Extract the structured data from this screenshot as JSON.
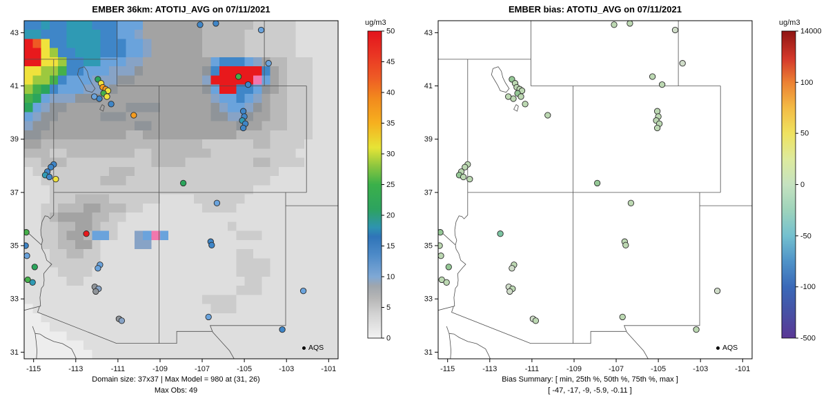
{
  "chart_data": {
    "type": [
      "heatmap",
      "scatter"
    ],
    "shared_axes": {
      "xlim": [
        -115.45,
        -100.55
      ],
      "ylim": [
        30.75,
        43.45
      ],
      "x_ticks": [
        -115,
        -113,
        -111,
        -109,
        -107,
        -105,
        -103,
        -101
      ],
      "y_ticks": [
        31,
        33,
        35,
        37,
        39,
        41,
        43
      ],
      "grid": false
    },
    "palette": {
      "0": "#ededed",
      "1": "#dedede",
      "2": "#cccccc",
      "3": "#b9b9b9",
      "4": "#a3a3a3",
      "5": "#8f9499",
      "6": "#87a3c6",
      "7": "#6aa3dc",
      "8": "#3f86c8",
      "9": "#2f9ab4",
      "A": "#2ba55c",
      "B": "#45b04a",
      "C": "#9cc93e",
      "D": "#f0e23c",
      "E": "#f59c1f",
      "F": "#ee5a24",
      "G": "#e8191c",
      "P": "#f277ad"
    },
    "value_levels_ugm3": {
      "0": 0,
      "1": 1.5,
      "2": 3,
      "3": 4.5,
      "4": 6,
      "5": 7.5,
      "6": 9,
      "7": 11,
      "8": 13,
      "9": 16,
      "A": 21,
      "B": 24,
      "C": 27,
      "D": 31,
      "E": 36,
      "F": 44,
      "G": 50,
      "P": ">50"
    },
    "bias_palette": {
      "q": "#bcd8b2",
      "r": "#94c795",
      "s": "#cfdcc8",
      "t": "#7cc4a2"
    },
    "bias_levels_ugm3": {
      "q": -10,
      "r": -25,
      "s": -3,
      "t": -45
    },
    "obs_points_format": [
      "lon",
      "lat",
      "model_level",
      "bias_level"
    ],
    "obs_points": [
      [
        -111.95,
        41.25,
        "A",
        "r"
      ],
      [
        -111.8,
        41.1,
        "D",
        "q"
      ],
      [
        -111.72,
        40.95,
        "E",
        "q"
      ],
      [
        -111.58,
        40.88,
        "E",
        "q"
      ],
      [
        -111.47,
        40.82,
        "D",
        "q"
      ],
      [
        -111.68,
        40.72,
        "B",
        "r"
      ],
      [
        -111.52,
        40.6,
        "D",
        "q"
      ],
      [
        -111.88,
        40.52,
        "8",
        "q"
      ],
      [
        -112.12,
        40.6,
        "7",
        "q"
      ],
      [
        -111.32,
        40.32,
        "8",
        "q"
      ],
      [
        -110.25,
        39.9,
        "E",
        "q"
      ],
      [
        -107.1,
        43.3,
        "8",
        "q"
      ],
      [
        -106.35,
        43.35,
        "8",
        "q"
      ],
      [
        -104.2,
        43.1,
        "7",
        "s"
      ],
      [
        -105.28,
        41.35,
        "B",
        "q"
      ],
      [
        -104.82,
        41.05,
        "8",
        "q"
      ],
      [
        -103.85,
        41.85,
        "7",
        "s"
      ],
      [
        -105.05,
        40.05,
        "8",
        "q"
      ],
      [
        -105.0,
        39.85,
        "8",
        "q"
      ],
      [
        -105.1,
        39.7,
        "9",
        "q"
      ],
      [
        -104.95,
        39.58,
        "8",
        "q"
      ],
      [
        -105.05,
        39.42,
        "8",
        "q"
      ],
      [
        -107.9,
        37.35,
        "A",
        "r"
      ],
      [
        -106.3,
        36.6,
        "7",
        "q"
      ],
      [
        -114.05,
        38.05,
        "8",
        "q"
      ],
      [
        -114.18,
        37.95,
        "8",
        "q"
      ],
      [
        -114.35,
        37.78,
        "8",
        "q"
      ],
      [
        -114.45,
        37.65,
        "9",
        "r"
      ],
      [
        -114.25,
        37.58,
        "8",
        "q"
      ],
      [
        -113.95,
        37.5,
        "D",
        "q"
      ],
      [
        -112.5,
        35.45,
        "G",
        "t"
      ],
      [
        -115.35,
        35.5,
        "B",
        "r"
      ],
      [
        -115.38,
        35.0,
        "8",
        "q"
      ],
      [
        -115.32,
        34.62,
        "7",
        "q"
      ],
      [
        -114.95,
        34.2,
        "A",
        "r"
      ],
      [
        -115.28,
        33.72,
        "B",
        "q"
      ],
      [
        -115.05,
        33.62,
        "9",
        "q"
      ],
      [
        -111.85,
        34.28,
        "7",
        "q"
      ],
      [
        -111.95,
        34.15,
        "7",
        "s"
      ],
      [
        -112.1,
        33.45,
        "5",
        "s"
      ],
      [
        -111.92,
        33.38,
        "6",
        "q"
      ],
      [
        -112.05,
        33.28,
        "5",
        "s"
      ],
      [
        -110.95,
        32.25,
        "5",
        "s"
      ],
      [
        -110.82,
        32.18,
        "6",
        "q"
      ],
      [
        -106.6,
        35.15,
        "8",
        "q"
      ],
      [
        -106.55,
        35.02,
        "8",
        "q"
      ],
      [
        -106.7,
        32.32,
        "7",
        "q"
      ],
      [
        -103.2,
        31.85,
        "8",
        "q"
      ],
      [
        -102.2,
        33.3,
        "7",
        "s"
      ]
    ],
    "map_lines": [
      [
        [
          -115.6,
          42
        ],
        [
          -111.05,
          42
        ]
      ],
      [
        [
          -111.05,
          43.6
        ],
        [
          -111.05,
          41
        ]
      ],
      [
        [
          -111.05,
          41
        ],
        [
          -102.05,
          41
        ]
      ],
      [
        [
          -104.05,
          43.6
        ],
        [
          -104.05,
          41
        ]
      ],
      [
        [
          -114.05,
          42
        ],
        [
          -114.05,
          37
        ]
      ],
      [
        [
          -114.05,
          37
        ],
        [
          -102.05,
          37
        ]
      ],
      [
        [
          -109.05,
          41
        ],
        [
          -109.05,
          37
        ]
      ],
      [
        [
          -109.05,
          37
        ],
        [
          -109.05,
          31.33
        ]
      ],
      [
        [
          -102.05,
          41
        ],
        [
          -102.05,
          37
        ]
      ],
      [
        [
          -103.04,
          37
        ],
        [
          -103.04,
          32
        ],
        [
          -106.62,
          32
        ],
        [
          -106.5,
          31.75
        ],
        [
          -106.1,
          31.4
        ],
        [
          -105.7,
          31.05
        ],
        [
          -105.45,
          30.7
        ]
      ],
      [
        [
          -103.04,
          36.5
        ],
        [
          -100.4,
          36.5
        ]
      ],
      [
        [
          -115.6,
          32.54
        ],
        [
          -114.72,
          32.72
        ],
        [
          -114.81,
          32.5
        ],
        [
          -111.07,
          31.33
        ],
        [
          -108.21,
          31.33
        ],
        [
          -108.21,
          31.78
        ],
        [
          -106.53,
          31.78
        ]
      ],
      [
        [
          -115.6,
          35.72
        ],
        [
          -114.63,
          35.03
        ],
        [
          -114.6,
          34.87
        ],
        [
          -114.47,
          34.7
        ],
        [
          -114.38,
          34.45
        ],
        [
          -114.14,
          34.3
        ],
        [
          -114.29,
          34.17
        ],
        [
          -114.52,
          33.95
        ],
        [
          -114.5,
          33.7
        ],
        [
          -114.53,
          33.5
        ],
        [
          -114.63,
          33.4
        ],
        [
          -114.7,
          33.05
        ],
        [
          -114.67,
          32.73
        ],
        [
          -114.72,
          32.72
        ]
      ],
      [
        [
          -114.05,
          37
        ],
        [
          -114.05,
          36.15
        ],
        [
          -114.22,
          36.01
        ],
        [
          -114.33,
          36.1
        ],
        [
          -114.46,
          36.12
        ],
        [
          -114.6,
          35.9
        ],
        [
          -114.66,
          35.6
        ],
        [
          -114.65,
          35.4
        ],
        [
          -114.57,
          35.2
        ],
        [
          -114.63,
          35.03
        ]
      ],
      [
        [
          -115.05,
          31.97
        ],
        [
          -114.93,
          31.7
        ],
        [
          -114.88,
          31.4
        ],
        [
          -114.84,
          31.05
        ],
        [
          -114.87,
          30.7
        ]
      ],
      [
        [
          -114.93,
          31.7
        ],
        [
          -114.7,
          31.68
        ],
        [
          -114.45,
          31.55
        ],
        [
          -114.05,
          31.4
        ],
        [
          -113.63,
          31.32
        ],
        [
          -113.2,
          31.12
        ],
        [
          -113.06,
          30.9
        ],
        [
          -112.95,
          30.7
        ]
      ],
      [
        [
          -112.85,
          41.65
        ],
        [
          -112.6,
          41.72
        ],
        [
          -112.45,
          41.55
        ],
        [
          -112.38,
          41.32
        ],
        [
          -112.26,
          41.12
        ],
        [
          -112.08,
          40.9
        ],
        [
          -112.22,
          40.76
        ],
        [
          -112.5,
          40.82
        ],
        [
          -112.62,
          41.02
        ],
        [
          -112.77,
          41.22
        ],
        [
          -112.92,
          41.42
        ],
        [
          -112.85,
          41.65
        ]
      ],
      [
        [
          -111.75,
          40.3
        ],
        [
          -111.64,
          40.24
        ],
        [
          -111.7,
          40.05
        ],
        [
          -111.86,
          40.12
        ],
        [
          -111.75,
          40.3
        ]
      ]
    ],
    "panels": [
      {
        "id": "model",
        "type": "heatmap",
        "title": "EMBER 36km: ATOTIJ_AVG on 07/11/2021",
        "unit": "ug/m3",
        "legend_label": "AQS",
        "footer1": "Domain size: 37x37 | Max Model = 980 at (31, 26)",
        "footer2": "Max Obs: 49",
        "point_color": "model",
        "annotations": {
          "domain_size": "37x37",
          "max_model": 980,
          "max_model_cell": [
            31,
            26
          ],
          "max_obs": 49
        },
        "grid": {
          "ncols": 37,
          "nrows": 37,
          "rows": [
            "8898899988877744444443333332222211111",
            "9988899998877644444443333322222211111",
            "GFD8899998887764444443333322222211111",
            "GGDC889998887764444443333322222211111",
            "GGDDC88997776644444444788876433222111",
            "DDCCB887776665444444458GGGGG843222111",
            "DCCB877766655444444446GGGGGP743222111",
            "CBA87776665444444444457GG887543222111",
            "BA76665554444444444444677876433222111",
            "A765544444445555444444567765433222111",
            "7655444445554444444444556654433222111",
            "6554444444444554444444444544333222111",
            "5544444444443344444444444333322222111",
            "4433333333333333333332222223322221111",
            "3332233333333223333333222222222211111",
            "2233322222222223333222222223322221111",
            "1222222222333222222222222222221111111",
            "1122222223332222222222222222211111111",
            "1112222222222222222222222221111111111",
            "1112223333222222111122222211111111111",
            "1122333443332211111112222111111111111",
            "1123444433221111111111111111111111111",
            "1122334432211111111111112111111111111",
            "112234437721167P711111111222111111111",
            "1122334421111661111111111111111111111",
            "1112233221111111111111111221111111111",
            "1112222221111111111111111222211111111",
            "1111222211111111111111111222211111111",
            "1111122111111111111111111122111111111",
            "1111111111111111111111111222111111111",
            "1111111111111111111112222111111111111",
            "0111111111111111111111222111111111111",
            "0011111111111111111111111111111111111",
            "0001111111111111111111111111111111111",
            "0000011111111111111111111111111111111",
            "0000000111111111111111111111111111111",
            "0000000011111111111111111111111111111"
          ]
        },
        "colorbar": {
          "ticks": [
            {
              "label": "0",
              "f": 0
            },
            {
              "label": "5",
              "f": 0.1
            },
            {
              "label": "10",
              "f": 0.2
            },
            {
              "label": "15",
              "f": 0.3
            },
            {
              "label": "20",
              "f": 0.4
            },
            {
              "label": "25",
              "f": 0.5
            },
            {
              "label": "30",
              "f": 0.6
            },
            {
              "label": "35",
              "f": 0.7
            },
            {
              "label": "40",
              "f": 0.8
            },
            {
              "label": "45",
              "f": 0.9
            },
            {
              "label": "50",
              "f": 1
            }
          ],
          "stops": [
            {
              "f": 0.0,
              "c": "#f2f2f2"
            },
            {
              "f": 0.08,
              "c": "#d2d2d2"
            },
            {
              "f": 0.13,
              "c": "#b6b6b6"
            },
            {
              "f": 0.17,
              "c": "#9fa6ad"
            },
            {
              "f": 0.2,
              "c": "#7fa8d5"
            },
            {
              "f": 0.27,
              "c": "#4e8bc8"
            },
            {
              "f": 0.33,
              "c": "#2f74b8"
            },
            {
              "f": 0.36,
              "c": "#2e93b0"
            },
            {
              "f": 0.42,
              "c": "#2da35f"
            },
            {
              "f": 0.5,
              "c": "#3bb04a"
            },
            {
              "f": 0.56,
              "c": "#8cc63f"
            },
            {
              "f": 0.62,
              "c": "#e6e436"
            },
            {
              "f": 0.7,
              "c": "#f6b01f"
            },
            {
              "f": 0.78,
              "c": "#f28a1d"
            },
            {
              "f": 0.85,
              "c": "#ee5a25"
            },
            {
              "f": 0.93,
              "c": "#e93223"
            },
            {
              "f": 1.0,
              "c": "#e3141c"
            }
          ]
        }
      },
      {
        "id": "bias",
        "type": "scatter",
        "title": "EMBER bias: ATOTIJ_AVG on 07/11/2021",
        "unit": "ug/m3",
        "legend_label": "AQS",
        "footer1": "Bias Summary: [ min, 25th %, 50th %, 75th %, max ]",
        "footer2": "[ -47,  -17,  -9,  -5.9,  -0.11 ]",
        "point_color": "bias",
        "annotations": {
          "bias_summary": {
            "min": -47,
            "p25": -17,
            "p50": -9,
            "p75": -5.9,
            "max": -0.11
          }
        },
        "colorbar": {
          "ticks": [
            {
              "label": "-500",
              "f": 0
            },
            {
              "label": "-100",
              "f": 0.167
            },
            {
              "label": "-50",
              "f": 0.333
            },
            {
              "label": "0",
              "f": 0.5
            },
            {
              "label": "50",
              "f": 0.667
            },
            {
              "label": "100",
              "f": 0.833
            },
            {
              "label": "14000",
              "f": 1
            }
          ],
          "stops": [
            {
              "f": 0.0,
              "c": "#5a3795"
            },
            {
              "f": 0.09,
              "c": "#4653a6"
            },
            {
              "f": 0.167,
              "c": "#3a69b8"
            },
            {
              "f": 0.25,
              "c": "#4f93c8"
            },
            {
              "f": 0.333,
              "c": "#74c0cf"
            },
            {
              "f": 0.42,
              "c": "#9fd4bb"
            },
            {
              "f": 0.5,
              "c": "#c5e2c0"
            },
            {
              "f": 0.58,
              "c": "#dcea9f"
            },
            {
              "f": 0.667,
              "c": "#efe25f"
            },
            {
              "f": 0.75,
              "c": "#f3bb45"
            },
            {
              "f": 0.833,
              "c": "#ec8133"
            },
            {
              "f": 0.91,
              "c": "#d4392b"
            },
            {
              "f": 1.0,
              "c": "#8f1513"
            }
          ]
        }
      }
    ]
  }
}
